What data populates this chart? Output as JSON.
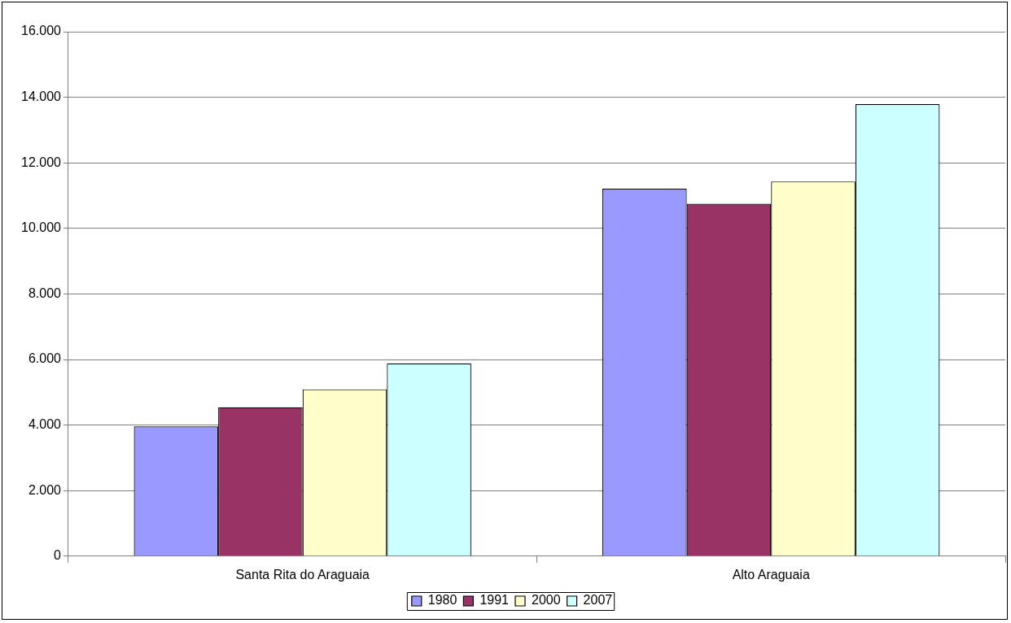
{
  "chart_data": {
    "type": "bar",
    "categories": [
      "Santa Rita do Araguaia",
      "Alto Araguaia"
    ],
    "series": [
      {
        "name": "1980",
        "color": "#9999ff",
        "values": [
          3960,
          11210
        ]
      },
      {
        "name": "1991",
        "color": "#993366",
        "values": [
          4540,
          10750
        ]
      },
      {
        "name": "2000",
        "color": "#ffffcc",
        "values": [
          5090,
          11430
        ]
      },
      {
        "name": "2007",
        "color": "#ccffff",
        "values": [
          5880,
          13790
        ]
      }
    ],
    "ylim": [
      0,
      16000
    ],
    "yticks": [
      {
        "value": 0,
        "label": "0"
      },
      {
        "value": 2000,
        "label": "2.000"
      },
      {
        "value": 4000,
        "label": "4.000"
      },
      {
        "value": 6000,
        "label": "6.000"
      },
      {
        "value": 8000,
        "label": "8.000"
      },
      {
        "value": 10000,
        "label": "10.000"
      },
      {
        "value": 12000,
        "label": "12.000"
      },
      {
        "value": 14000,
        "label": "14.000"
      },
      {
        "value": 16000,
        "label": "16.000"
      }
    ],
    "grid": "y",
    "legend": "bottom"
  }
}
